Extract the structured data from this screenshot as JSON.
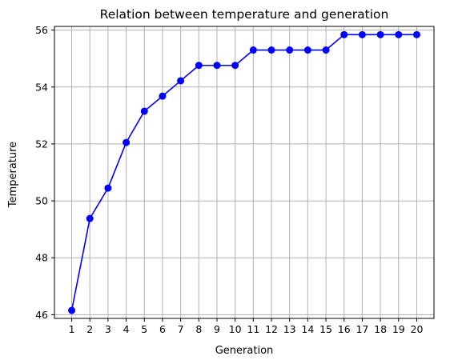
{
  "chart_data": {
    "type": "line",
    "title": "Relation between temperature and generation",
    "xlabel": "Generation",
    "ylabel": "Temperature",
    "x": [
      1,
      2,
      3,
      4,
      5,
      6,
      7,
      8,
      9,
      10,
      11,
      12,
      13,
      14,
      15,
      16,
      17,
      18,
      19,
      20
    ],
    "series": [
      {
        "values": [
          46.15,
          49.38,
          50.45,
          52.05,
          53.15,
          53.68,
          54.22,
          54.76,
          54.76,
          54.76,
          55.3,
          55.3,
          55.3,
          55.3,
          55.3,
          55.84,
          55.84,
          55.84,
          55.84,
          55.84
        ],
        "color": "#0000ff",
        "marker": "circle"
      }
    ],
    "xticks": [
      "1",
      "2",
      "3",
      "4",
      "5",
      "6",
      "7",
      "8",
      "9",
      "10",
      "11",
      "12",
      "13",
      "14",
      "15",
      "16",
      "17",
      "18",
      "19",
      "20"
    ],
    "yticks": [
      46,
      48,
      50,
      52,
      54,
      56
    ],
    "xlim": [
      0.05,
      20.95
    ],
    "ylim": [
      45.87,
      56.13
    ],
    "grid": true
  }
}
